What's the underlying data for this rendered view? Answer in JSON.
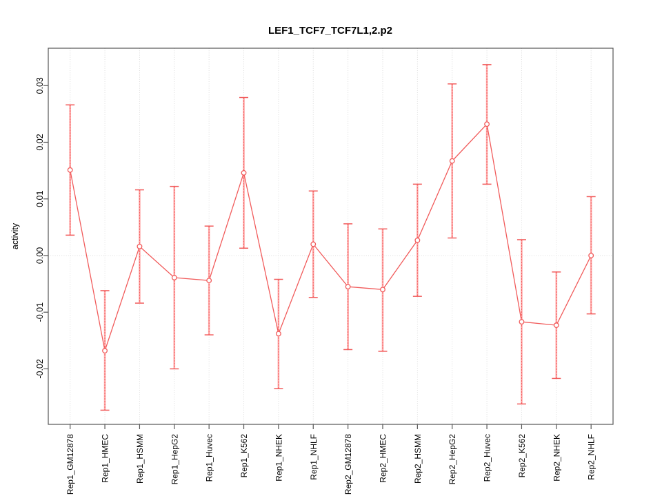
{
  "chart_data": {
    "type": "line",
    "title": "LEF1_TCF7_TCF7L1,2.p2",
    "xlabel": "",
    "ylabel": "activity",
    "categories": [
      "Rep1_GM12878",
      "Rep1_HMEC",
      "Rep1_HSMM",
      "Rep1_HepG2",
      "Rep1_Huvec",
      "Rep1_K562",
      "Rep1_NHEK",
      "Rep1_NHLF",
      "Rep2_GM12878",
      "Rep2_HMEC",
      "Rep2_HSMM",
      "Rep2_HepG2",
      "Rep2_Huvec",
      "Rep2_K562",
      "Rep2_NHEK",
      "Rep2_NHLF"
    ],
    "series": [
      {
        "name": "activity",
        "marker": "open-circle",
        "values": [
          0.0151,
          -0.0168,
          0.0016,
          -0.0039,
          -0.0044,
          0.0146,
          -0.0138,
          0.002,
          -0.0055,
          -0.006,
          0.0027,
          0.0167,
          0.0232,
          -0.0117,
          -0.0123,
          0.0
        ],
        "error_low": [
          0.0036,
          -0.0273,
          -0.0084,
          -0.02,
          -0.014,
          0.0013,
          -0.0235,
          -0.0074,
          -0.0166,
          -0.0169,
          -0.0072,
          0.0031,
          0.0126,
          -0.0262,
          -0.0217,
          -0.0103
        ],
        "error_high": [
          0.0266,
          -0.0062,
          0.0116,
          0.0122,
          0.0052,
          0.0279,
          -0.0042,
          0.0114,
          0.0056,
          0.0047,
          0.0126,
          0.0303,
          0.0337,
          0.0028,
          -0.0029,
          0.0104
        ]
      }
    ],
    "yticks": [
      -0.02,
      -0.01,
      0,
      0.01,
      0.02,
      0.03
    ],
    "ylim": [
      -0.0298,
      0.0366
    ],
    "grid": "vertical dotted line at every category; horizontal dotted line at y=0 only",
    "legend": "none",
    "colors": {
      "series": "#f15b5b",
      "error_band": "#ffacac",
      "gridline": "#dcdcdc",
      "axis": "#555555",
      "text": "#000000",
      "background": "#ffffff"
    }
  }
}
